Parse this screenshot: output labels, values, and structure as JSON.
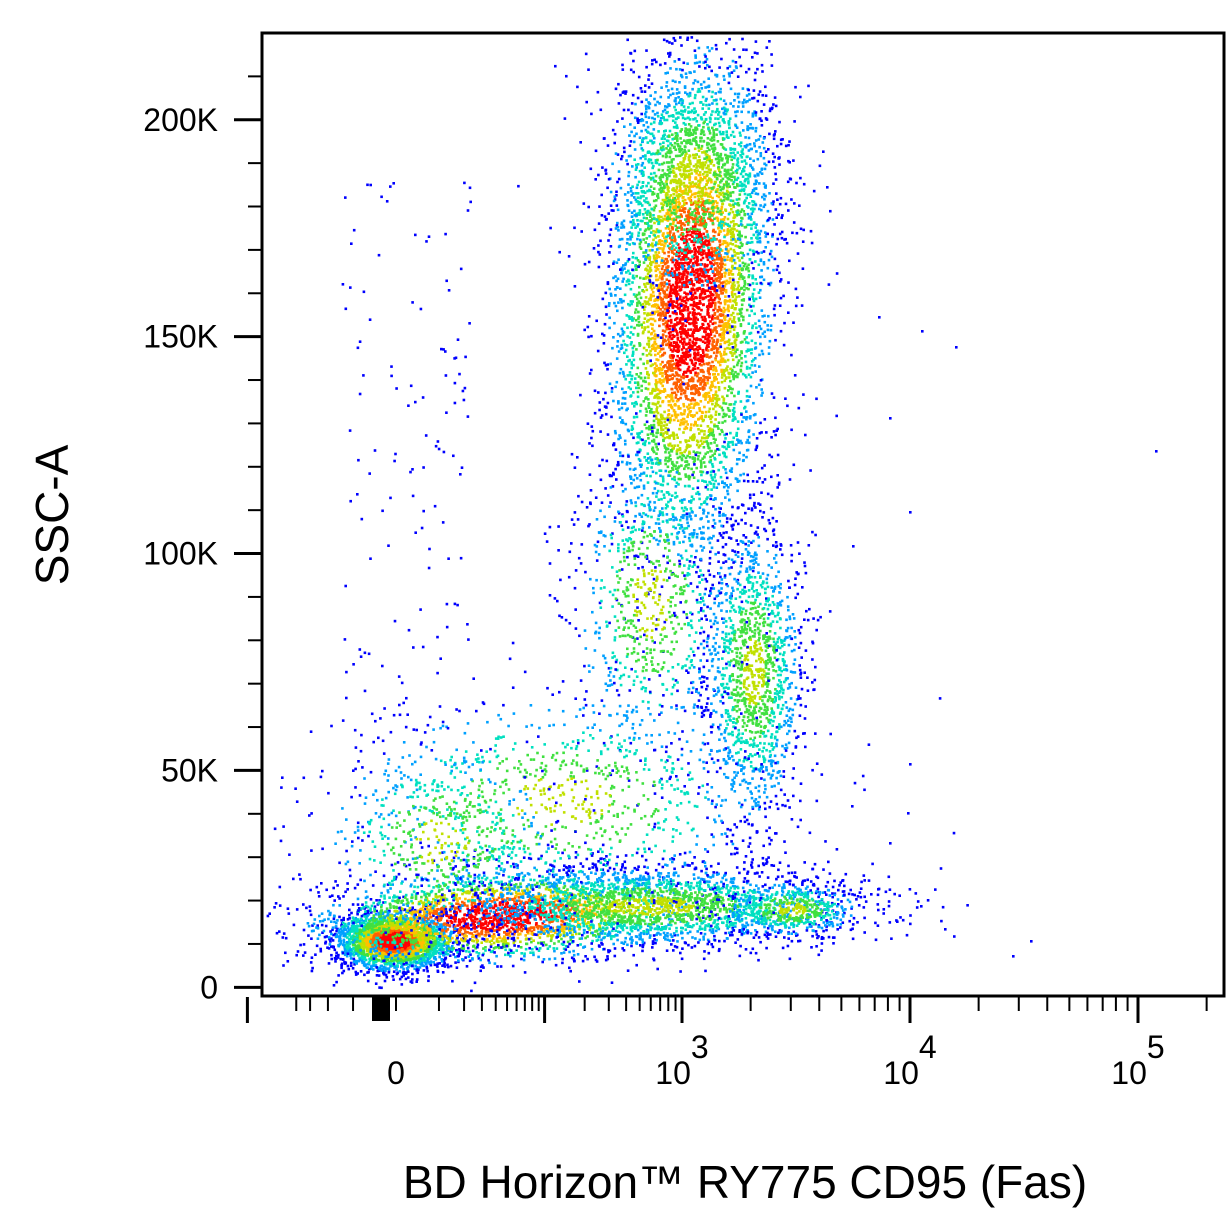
{
  "chart_data": {
    "type": "scatter",
    "title": "",
    "xlabel": "BD Horizon™ RY775 CD95 (Fas)",
    "ylabel": "SSC-A",
    "x_scale": "biexponential",
    "x_tick_labels": [
      {
        "value": 0,
        "base": "0",
        "exp": ""
      },
      {
        "value": 1000,
        "base": "10",
        "exp": "3"
      },
      {
        "value": 10000,
        "base": "10",
        "exp": "4"
      },
      {
        "value": 100000,
        "base": "10",
        "exp": "5"
      }
    ],
    "y_ticks": [
      0,
      50000,
      100000,
      150000,
      200000
    ],
    "y_tick_labels": [
      "0",
      "50K",
      "100K",
      "150K",
      "200K"
    ],
    "ylim": [
      -2000,
      220000
    ],
    "grid": false,
    "legend": "none",
    "colormap": [
      "#0000ff",
      "#00a0ff",
      "#00e0c0",
      "#40e040",
      "#c0e000",
      "#ffc000",
      "#ff6000",
      "#ff0000"
    ],
    "populations": [
      {
        "name_shown": false,
        "x_center": 0,
        "y_center": 12000,
        "density": "high"
      },
      {
        "name_shown": false,
        "x_center": 1000,
        "y_center": 135000,
        "density": "high"
      },
      {
        "name_shown": false,
        "x_center": 1800,
        "y_center": 70000,
        "density": "medium"
      },
      {
        "name_shown": false,
        "x_center": 300,
        "y_center": 20000,
        "density": "medium"
      }
    ]
  }
}
